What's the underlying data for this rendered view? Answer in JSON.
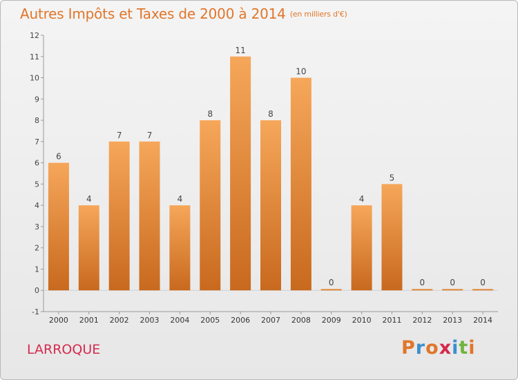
{
  "header": {
    "title": "Autres Impôts et Taxes de 2000 à 2014",
    "unit": "(en milliers d'€)"
  },
  "commune": "LARROQUE",
  "logo": {
    "text": "Proxiti",
    "colors": [
      "#e0762a",
      "#3a8fd1",
      "#e0762a",
      "#d4294e",
      "#3a8fd1",
      "#6fb43f",
      "#e0762a"
    ]
  },
  "colors": {
    "bar_light": "#f6a75a",
    "bar_dark": "#c8691e",
    "title": "#e0762a",
    "commune": "#d4294e"
  },
  "chart_data": {
    "type": "bar",
    "categories": [
      "2000",
      "2001",
      "2002",
      "2003",
      "2004",
      "2005",
      "2006",
      "2007",
      "2008",
      "2009",
      "2010",
      "2011",
      "2012",
      "2013",
      "2014"
    ],
    "values": [
      6,
      4,
      7,
      7,
      4,
      8,
      11,
      8,
      10,
      0,
      4,
      5,
      0,
      0,
      0
    ],
    "data_labels": [
      "6",
      "4",
      "7",
      "7",
      "4",
      "8",
      "11",
      "8",
      "10",
      "0",
      "4",
      "5",
      "0",
      "0",
      "0"
    ],
    "ylim": [
      -1,
      12
    ],
    "yticks": [
      -1,
      0,
      1,
      2,
      3,
      4,
      5,
      6,
      7,
      8,
      9,
      10,
      11,
      12
    ],
    "ytick_labels": [
      "-1",
      "0",
      "1",
      "2",
      "3",
      "4",
      "5",
      "6",
      "7",
      "8",
      "9",
      "10",
      "11",
      "12"
    ],
    "xlabel": "",
    "ylabel": "",
    "grid": false,
    "legend": "none"
  }
}
